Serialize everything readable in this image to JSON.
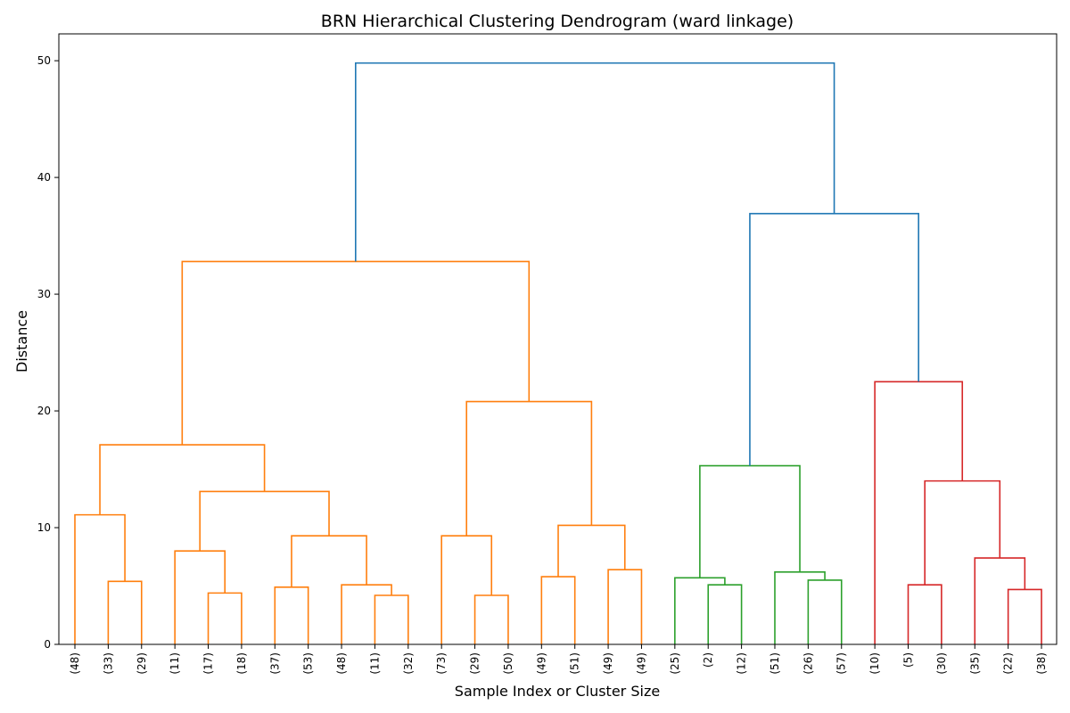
{
  "chart_data": {
    "type": "dendrogram",
    "title": "BRN Hierarchical Clustering Dendrogram (ward linkage)",
    "xlabel": "Sample Index or Cluster Size",
    "ylabel": "Distance",
    "ylim": [
      0,
      52.3
    ],
    "yticks": [
      0,
      10,
      20,
      30,
      40,
      50
    ],
    "leaf_labels": [
      "(48)",
      "(33)",
      "(29)",
      "(11)",
      "(17)",
      "(18)",
      "(37)",
      "(53)",
      "(48)",
      "(11)",
      "(32)",
      "(73)",
      "(29)",
      "(50)",
      "(49)",
      "(51)",
      "(49)",
      "(49)",
      "(25)",
      "(2)",
      "(12)",
      "(51)",
      "(26)",
      "(57)",
      "(10)",
      "(5)",
      "(30)",
      "(35)",
      "(22)",
      "(38)"
    ],
    "colors": {
      "orange": "#ff7f0e",
      "green": "#2ca02c",
      "red": "#d62728",
      "blue": "#1f77b4"
    },
    "merges": [
      {
        "left": 1,
        "right": 2,
        "height": 5.4,
        "color": "orange"
      },
      {
        "left": 0,
        "right": "m0",
        "height": 11.1,
        "color": "orange"
      },
      {
        "left": 4,
        "right": 5,
        "height": 4.4,
        "color": "orange"
      },
      {
        "left": 3,
        "right": "m2",
        "height": 8.0,
        "color": "orange"
      },
      {
        "left": 6,
        "right": 7,
        "height": 4.9,
        "color": "orange"
      },
      {
        "left": 9,
        "right": 10,
        "height": 4.2,
        "color": "orange"
      },
      {
        "left": 8,
        "right": "m5",
        "height": 5.1,
        "color": "orange"
      },
      {
        "left": "m4",
        "right": "m6",
        "height": 9.3,
        "color": "orange"
      },
      {
        "left": "m3",
        "right": "m7",
        "height": 13.1,
        "color": "orange"
      },
      {
        "left": "m1",
        "right": "m8",
        "height": 17.1,
        "color": "orange"
      },
      {
        "left": 12,
        "right": 13,
        "height": 4.2,
        "color": "orange"
      },
      {
        "left": 11,
        "right": "m10",
        "height": 9.3,
        "color": "orange"
      },
      {
        "left": 14,
        "right": 15,
        "height": 5.8,
        "color": "orange"
      },
      {
        "left": 16,
        "right": 17,
        "height": 6.4,
        "color": "orange"
      },
      {
        "left": "m12",
        "right": "m13",
        "height": 10.2,
        "color": "orange"
      },
      {
        "left": "m11",
        "right": "m14",
        "height": 20.8,
        "color": "orange"
      },
      {
        "left": "m9",
        "right": "m15",
        "height": 32.8,
        "color": "orange"
      },
      {
        "left": 19,
        "right": 20,
        "height": 5.1,
        "color": "green"
      },
      {
        "left": 18,
        "right": "m17",
        "height": 5.7,
        "color": "green"
      },
      {
        "left": 22,
        "right": 23,
        "height": 5.5,
        "color": "green"
      },
      {
        "left": 21,
        "right": "m19",
        "height": 6.2,
        "color": "green"
      },
      {
        "left": "m18",
        "right": "m20",
        "height": 15.3,
        "color": "green"
      },
      {
        "left": 25,
        "right": 26,
        "height": 5.1,
        "color": "red"
      },
      {
        "left": 28,
        "right": 29,
        "height": 4.7,
        "color": "red"
      },
      {
        "left": 27,
        "right": "m23",
        "height": 7.4,
        "color": "red"
      },
      {
        "left": "m22",
        "right": "m24",
        "height": 14.0,
        "color": "red"
      },
      {
        "left": 24,
        "right": "m25",
        "height": 22.5,
        "color": "red"
      },
      {
        "left": "m21",
        "right": "m26",
        "height": 36.9,
        "color": "blue"
      },
      {
        "left": "m16",
        "right": "m27",
        "height": 49.8,
        "color": "blue"
      }
    ]
  }
}
